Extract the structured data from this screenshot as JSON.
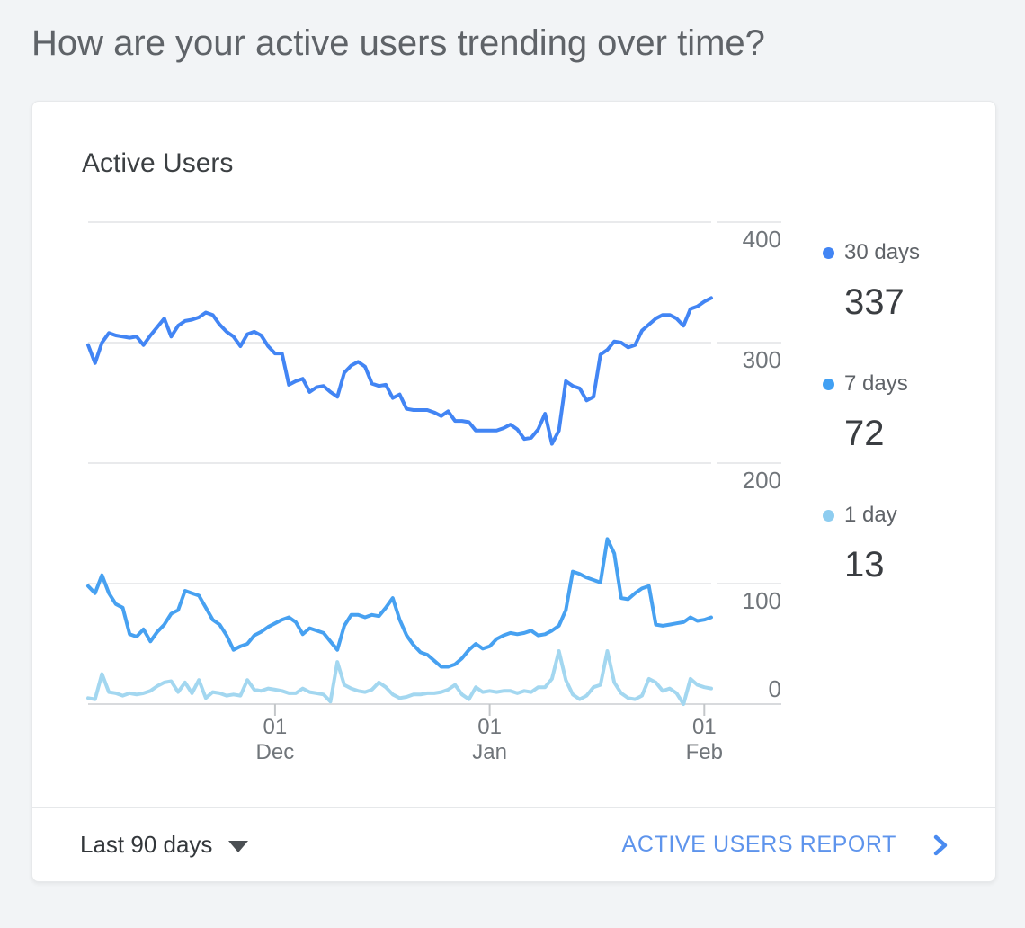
{
  "page": {
    "title": "How are your active users trending over time?"
  },
  "card": {
    "title": "Active Users"
  },
  "footer": {
    "range_label": "Last 90 days",
    "report_link_label": "ACTIVE USERS REPORT"
  },
  "chart_data": {
    "type": "line",
    "title": "Active Users",
    "xlabel": "",
    "ylabel": "",
    "ylim": [
      0,
      400
    ],
    "yticks": [
      0,
      100,
      200,
      300,
      400
    ],
    "grid": true,
    "legend_position": "right",
    "n_points": 91,
    "xticks": [
      {
        "index": 27,
        "line1": "01",
        "line2": "Dec"
      },
      {
        "index": 58,
        "line1": "01",
        "line2": "Jan"
      },
      {
        "index": 89,
        "line1": "01",
        "line2": "Feb"
      }
    ],
    "series": [
      {
        "name": "30 days",
        "current": 337,
        "color": "#4285f4",
        "dot_color": "#4285f4",
        "values": [
          298,
          283,
          300,
          308,
          306,
          305,
          304,
          305,
          298,
          306,
          313,
          320,
          305,
          314,
          318,
          319,
          321,
          325,
          323,
          315,
          309,
          305,
          297,
          307,
          309,
          306,
          297,
          291,
          291,
          265,
          268,
          270,
          259,
          263,
          264,
          259,
          255,
          275,
          281,
          284,
          280,
          266,
          264,
          265,
          254,
          257,
          245,
          244,
          244,
          244,
          242,
          239,
          243,
          235,
          235,
          234,
          227,
          227,
          227,
          227,
          229,
          232,
          228,
          220,
          221,
          228,
          241,
          216,
          227,
          268,
          264,
          262,
          252,
          255,
          290,
          294,
          301,
          300,
          296,
          298,
          310,
          315,
          320,
          323,
          323,
          320,
          314,
          328,
          330,
          334,
          337
        ]
      },
      {
        "name": "7 days",
        "current": 72,
        "color": "#47a1f1",
        "dot_color": "#41a0f3",
        "values": [
          98,
          92,
          107,
          92,
          83,
          80,
          58,
          56,
          62,
          52,
          60,
          66,
          75,
          78,
          94,
          92,
          90,
          80,
          70,
          66,
          57,
          45,
          48,
          50,
          57,
          60,
          64,
          67,
          70,
          72,
          68,
          58,
          63,
          61,
          59,
          52,
          45,
          65,
          74,
          74,
          72,
          74,
          73,
          80,
          88,
          70,
          57,
          49,
          43,
          41,
          36,
          31,
          31,
          33,
          38,
          45,
          50,
          46,
          48,
          54,
          57,
          59,
          58,
          59,
          61,
          57,
          58,
          61,
          65,
          78,
          110,
          108,
          105,
          103,
          101,
          137,
          125,
          88,
          87,
          92,
          96,
          98,
          66,
          65,
          66,
          67,
          68,
          72,
          69,
          70,
          72
        ]
      },
      {
        "name": "1 day",
        "current": 13,
        "color": "#a3d7f0",
        "dot_color": "#8ecdf0",
        "values": [
          5,
          4,
          25,
          10,
          9,
          7,
          9,
          8,
          9,
          11,
          15,
          18,
          19,
          10,
          18,
          9,
          20,
          5,
          10,
          9,
          7,
          8,
          7,
          20,
          12,
          11,
          13,
          12,
          11,
          9,
          9,
          13,
          10,
          9,
          8,
          2,
          35,
          16,
          13,
          11,
          10,
          12,
          18,
          14,
          8,
          5,
          6,
          8,
          8,
          9,
          9,
          10,
          12,
          16,
          8,
          4,
          14,
          10,
          11,
          10,
          11,
          11,
          9,
          11,
          10,
          14,
          14,
          21,
          44,
          20,
          8,
          4,
          7,
          14,
          16,
          44,
          18,
          9,
          5,
          4,
          7,
          21,
          18,
          11,
          13,
          9,
          0,
          21,
          16,
          14,
          13
        ]
      }
    ]
  }
}
